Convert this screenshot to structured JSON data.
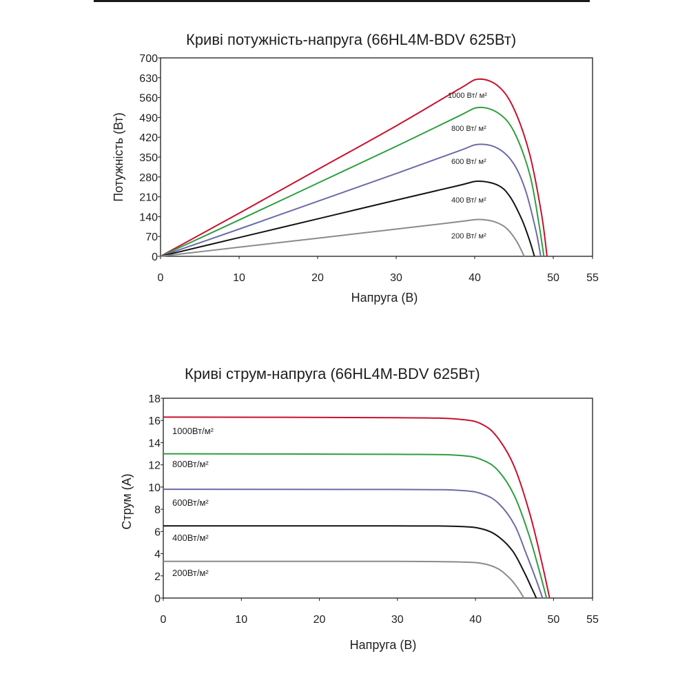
{
  "chart_data": [
    {
      "type": "line",
      "title": "Криві потужність-напруга (66HL4M-BDV 625Вт)",
      "xlabel": "Напруга (В)",
      "ylabel": "Потужність (Вт)",
      "xlim": [
        0,
        55
      ],
      "ylim": [
        0,
        700
      ],
      "xticks": [
        "0",
        "10",
        "20",
        "30",
        "40",
        "50",
        "55"
      ],
      "yticks": [
        "0",
        "70",
        "140",
        "210",
        "280",
        "350",
        "420",
        "490",
        "560",
        "630",
        "700"
      ],
      "grid": false,
      "series": [
        {
          "name": "1000 Вт/ м²",
          "color": "#c8102e",
          "x": [
            0,
            10,
            20,
            30,
            38,
            40.5,
            43,
            45,
            47,
            48.5,
            49.2
          ],
          "y": [
            0,
            152,
            306,
            460,
            590,
            625,
            600,
            520,
            360,
            150,
            0
          ]
        },
        {
          "name": "800 Вт/ м²",
          "color": "#2e9e3e",
          "x": [
            0,
            10,
            20,
            30,
            38,
            40.5,
            43,
            45,
            47,
            48.2,
            48.8
          ],
          "y": [
            0,
            128,
            258,
            388,
            495,
            525,
            505,
            440,
            290,
            110,
            0
          ]
        },
        {
          "name": "600 Вт/ м²",
          "color": "#6a6aa8",
          "x": [
            0,
            10,
            20,
            30,
            38,
            40.5,
            43,
            45,
            46.5,
            47.8,
            48.4
          ],
          "y": [
            0,
            96,
            194,
            292,
            372,
            395,
            380,
            325,
            230,
            90,
            0
          ]
        },
        {
          "name": "400 Вт/ м²",
          "color": "#111111",
          "x": [
            0,
            10,
            20,
            30,
            38,
            40.5,
            43,
            44.5,
            46,
            47,
            47.6
          ],
          "y": [
            0,
            66,
            132,
            198,
            250,
            265,
            250,
            210,
            130,
            55,
            0
          ]
        },
        {
          "name": "200 Вт/ м²",
          "color": "#8a8a8a",
          "x": [
            0,
            10,
            20,
            30,
            38,
            40.5,
            42.5,
            44,
            45.3,
            46.3
          ],
          "y": [
            0,
            32,
            64,
            96,
            122,
            130,
            122,
            100,
            55,
            0
          ]
        }
      ]
    },
    {
      "type": "line",
      "title": "Криві струм-напруга (66HL4M-BDV 625Вт)",
      "xlabel": "Напруга (В)",
      "ylabel": "Струм (А)",
      "xlim": [
        0,
        55
      ],
      "ylim": [
        0,
        18
      ],
      "xticks": [
        "0",
        "10",
        "20",
        "30",
        "40",
        "50",
        "55"
      ],
      "yticks": [
        "0",
        "2",
        "4",
        "6",
        "8",
        "10",
        "12",
        "14",
        "16",
        "18"
      ],
      "grid": false,
      "series": [
        {
          "name": "1000Вт/м²",
          "color": "#c8102e",
          "x": [
            0,
            30,
            38,
            41,
            43,
            45,
            47,
            48.5,
            49.5
          ],
          "y": [
            16.3,
            16.25,
            16.1,
            15.6,
            14.3,
            11.8,
            7.5,
            3.2,
            0
          ]
        },
        {
          "name": "800Вт/м²",
          "color": "#2e9e3e",
          "x": [
            0,
            30,
            38,
            41,
            43,
            45,
            46.8,
            48.2,
            49.1
          ],
          "y": [
            13.0,
            12.95,
            12.85,
            12.4,
            11.4,
            9.2,
            5.8,
            2.4,
            0
          ]
        },
        {
          "name": "600Вт/м²",
          "color": "#6a6aa8",
          "x": [
            0,
            30,
            38,
            41,
            43,
            45,
            46.5,
            47.8,
            48.6
          ],
          "y": [
            9.8,
            9.78,
            9.7,
            9.35,
            8.5,
            6.6,
            4.0,
            1.6,
            0
          ]
        },
        {
          "name": "400Вт/м²",
          "color": "#111111",
          "x": [
            0,
            30,
            38,
            41,
            43,
            44.8,
            46.2,
            47.2,
            47.8
          ],
          "y": [
            6.5,
            6.5,
            6.45,
            6.2,
            5.5,
            4.2,
            2.4,
            0.9,
            0
          ]
        },
        {
          "name": "200Вт/м²",
          "color": "#8a8a8a",
          "x": [
            0,
            30,
            38,
            41,
            43,
            44.5,
            45.5,
            46.2
          ],
          "y": [
            3.3,
            3.3,
            3.25,
            3.1,
            2.6,
            1.7,
            0.8,
            0
          ]
        }
      ]
    }
  ]
}
